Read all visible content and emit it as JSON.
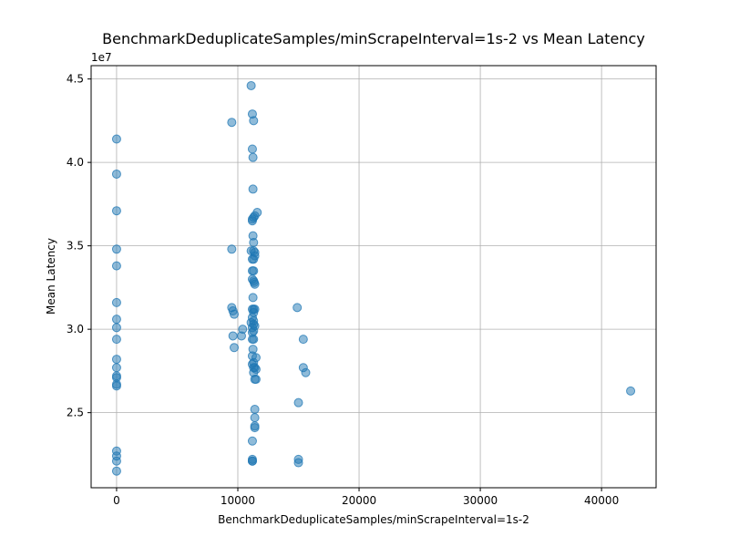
{
  "chart_data": {
    "type": "scatter",
    "title": "BenchmarkDeduplicateSamples/minScrapeInterval=1s-2 vs Mean Latency",
    "xlabel": "BenchmarkDeduplicateSamples/minScrapeInterval=1s-2",
    "ylabel": "Mean Latency",
    "y_offset_text": "1e7",
    "y_scale_factor": 10000000,
    "xlim": [
      -2100,
      44500
    ],
    "ylim": [
      2.05,
      4.58
    ],
    "x_ticks": [
      0,
      10000,
      20000,
      30000,
      40000
    ],
    "x_tick_labels": [
      "0",
      "10000",
      "20000",
      "30000",
      "40000"
    ],
    "y_ticks": [
      2.5,
      3.0,
      3.5,
      4.0,
      4.5
    ],
    "y_tick_labels": [
      "2.5",
      "3.0",
      "3.5",
      "4.0",
      "4.5"
    ],
    "grid": true,
    "marker_color": "#1f77b4",
    "marker_alpha": 0.5,
    "points": [
      [
        0,
        4.14
      ],
      [
        0,
        3.93
      ],
      [
        0,
        3.71
      ],
      [
        0,
        3.48
      ],
      [
        0,
        3.38
      ],
      [
        0,
        3.16
      ],
      [
        0,
        3.06
      ],
      [
        0,
        3.01
      ],
      [
        0,
        2.94
      ],
      [
        0,
        2.82
      ],
      [
        0,
        2.77
      ],
      [
        0,
        2.72
      ],
      [
        0,
        2.71
      ],
      [
        0,
        2.67
      ],
      [
        0,
        2.66
      ],
      [
        0,
        2.27
      ],
      [
        0,
        2.24
      ],
      [
        0,
        2.21
      ],
      [
        0,
        2.15
      ],
      [
        9500,
        4.24
      ],
      [
        9500,
        3.48
      ],
      [
        9500,
        3.13
      ],
      [
        9600,
        3.11
      ],
      [
        9700,
        3.09
      ],
      [
        9600,
        2.96
      ],
      [
        9700,
        2.89
      ],
      [
        10400,
        3.0
      ],
      [
        10300,
        2.96
      ],
      [
        11100,
        4.46
      ],
      [
        11200,
        4.29
      ],
      [
        11300,
        4.25
      ],
      [
        11200,
        4.08
      ],
      [
        11250,
        4.03
      ],
      [
        11250,
        3.84
      ],
      [
        11600,
        3.7
      ],
      [
        11400,
        3.68
      ],
      [
        11300,
        3.67
      ],
      [
        11200,
        3.66
      ],
      [
        11200,
        3.65
      ],
      [
        11250,
        3.56
      ],
      [
        11300,
        3.52
      ],
      [
        11300,
        3.47
      ],
      [
        11400,
        3.46
      ],
      [
        11100,
        3.47
      ],
      [
        11400,
        3.44
      ],
      [
        11200,
        3.42
      ],
      [
        11300,
        3.42
      ],
      [
        11200,
        3.35
      ],
      [
        11300,
        3.35
      ],
      [
        11200,
        3.3
      ],
      [
        11300,
        3.29
      ],
      [
        11350,
        3.28
      ],
      [
        11400,
        3.27
      ],
      [
        11250,
        3.19
      ],
      [
        11300,
        3.12
      ],
      [
        11200,
        3.12
      ],
      [
        11400,
        3.12
      ],
      [
        11300,
        3.1
      ],
      [
        11200,
        3.07
      ],
      [
        11300,
        3.05
      ],
      [
        11100,
        3.04
      ],
      [
        11300,
        3.03
      ],
      [
        11400,
        3.02
      ],
      [
        11200,
        3.01
      ],
      [
        11300,
        2.99
      ],
      [
        11200,
        2.98
      ],
      [
        11300,
        2.94
      ],
      [
        11200,
        2.94
      ],
      [
        11250,
        2.88
      ],
      [
        11200,
        2.84
      ],
      [
        11500,
        2.83
      ],
      [
        11300,
        2.8
      ],
      [
        11200,
        2.79
      ],
      [
        11400,
        2.77
      ],
      [
        11300,
        2.77
      ],
      [
        11500,
        2.76
      ],
      [
        11300,
        2.74
      ],
      [
        11500,
        2.7
      ],
      [
        11400,
        2.7
      ],
      [
        11400,
        2.52
      ],
      [
        11400,
        2.47
      ],
      [
        11400,
        2.42
      ],
      [
        11400,
        2.41
      ],
      [
        11200,
        2.33
      ],
      [
        11200,
        2.22
      ],
      [
        11200,
        2.21
      ],
      [
        11200,
        2.21
      ],
      [
        14900,
        3.13
      ],
      [
        15400,
        2.94
      ],
      [
        15400,
        2.77
      ],
      [
        15600,
        2.74
      ],
      [
        15000,
        2.56
      ],
      [
        15000,
        2.22
      ],
      [
        15000,
        2.2
      ],
      [
        42400,
        2.63
      ]
    ]
  }
}
